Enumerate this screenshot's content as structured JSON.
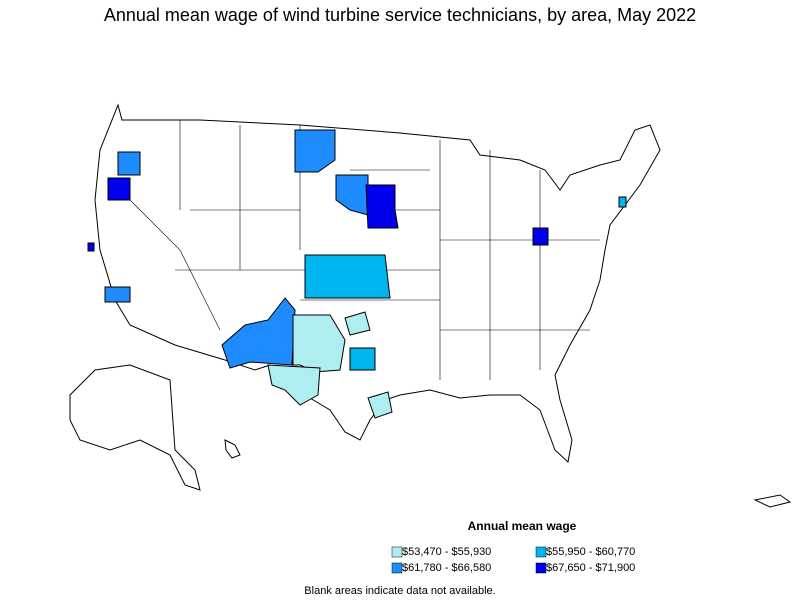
{
  "title": "Annual mean wage of wind turbine service technicians, by area, May 2022",
  "legend": {
    "title": "Annual mean wage",
    "items": [
      {
        "label": "$53,470 - $55,930",
        "color": "#aeeef0"
      },
      {
        "label": "$55,950 - $60,770",
        "color": "#00b4f0"
      },
      {
        "label": "$61,780 - $66,580",
        "color": "#1e8cff"
      },
      {
        "label": "$67,650 - $71,900",
        "color": "#0000ee"
      }
    ]
  },
  "note": "Blank areas indicate data not available."
}
